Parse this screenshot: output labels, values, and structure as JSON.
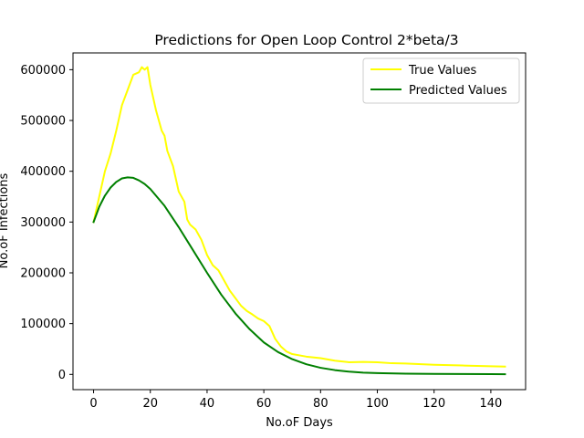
{
  "chart_data": {
    "type": "line",
    "title": "Predictions for Open Loop Control 2*beta/3",
    "xlabel": "No.oF Days",
    "ylabel": "No.oF Infections",
    "xlim": [
      -7.25,
      152.25
    ],
    "ylim": [
      -30000,
      633000
    ],
    "xticks": [
      0,
      20,
      40,
      60,
      80,
      100,
      120,
      140
    ],
    "yticks": [
      0,
      100000,
      200000,
      300000,
      400000,
      500000,
      600000
    ],
    "xtick_labels": [
      "0",
      "20",
      "40",
      "60",
      "80",
      "100",
      "120",
      "140"
    ],
    "ytick_labels": [
      "0",
      "100000",
      "200000",
      "300000",
      "400000",
      "500000",
      "600000"
    ],
    "grid": false,
    "legend_position": "top-right",
    "series": [
      {
        "name": "True Values",
        "color": "#ffff00",
        "x": [
          0,
          2,
          4,
          6,
          8,
          10,
          12,
          14,
          16,
          17,
          18,
          19,
          20,
          22,
          24,
          25,
          26,
          28,
          30,
          32,
          33,
          34,
          36,
          38,
          40,
          42,
          44,
          46,
          48,
          50,
          52,
          54,
          56,
          58,
          60,
          62,
          64,
          66,
          68,
          70,
          75,
          80,
          85,
          90,
          95,
          100,
          105,
          110,
          120,
          130,
          140,
          145
        ],
        "y": [
          300000,
          350000,
          400000,
          435000,
          480000,
          530000,
          560000,
          590000,
          595000,
          605000,
          600000,
          605000,
          570000,
          520000,
          480000,
          470000,
          440000,
          410000,
          360000,
          340000,
          305000,
          295000,
          285000,
          265000,
          235000,
          215000,
          205000,
          185000,
          165000,
          150000,
          135000,
          125000,
          118000,
          110000,
          105000,
          95000,
          70000,
          55000,
          45000,
          40000,
          35000,
          32000,
          27000,
          24000,
          24500,
          24000,
          22000,
          21500,
          19000,
          17500,
          16000,
          15500
        ]
      },
      {
        "name": "Predicted Values",
        "color": "#008000",
        "x": [
          0,
          2,
          4,
          6,
          8,
          10,
          12,
          14,
          16,
          18,
          20,
          25,
          30,
          35,
          40,
          45,
          50,
          55,
          60,
          65,
          70,
          75,
          80,
          85,
          90,
          95,
          100,
          110,
          120,
          130,
          140,
          145
        ],
        "y": [
          300000,
          330000,
          352000,
          368000,
          379000,
          386000,
          388000,
          387000,
          382000,
          375000,
          365000,
          332000,
          290000,
          245000,
          200000,
          157000,
          120000,
          89000,
          63000,
          44000,
          30000,
          20000,
          13000,
          8500,
          5500,
          3500,
          2500,
          1500,
          1000,
          700,
          500,
          400
        ]
      }
    ]
  }
}
